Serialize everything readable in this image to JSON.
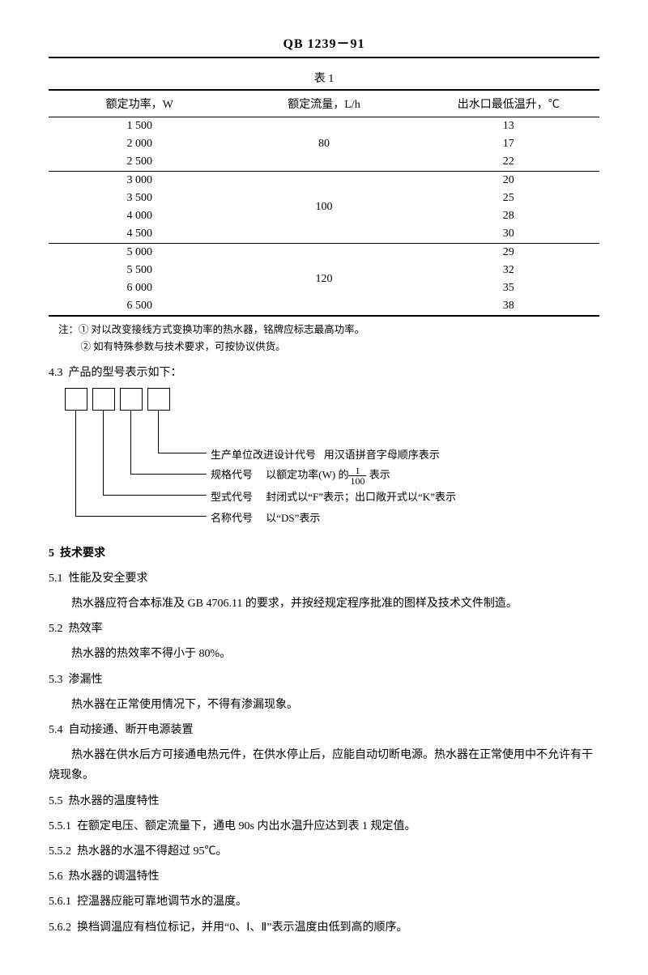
{
  "header": {
    "code": "QB 1239－91"
  },
  "table1": {
    "title": "表 1",
    "columns": [
      "额定功率，W",
      "额定流量，L/h",
      "出水口最低温升，℃"
    ],
    "column_widths": [
      "33%",
      "34%",
      "33%"
    ],
    "groups": [
      {
        "flow": "80",
        "rows": [
          [
            "1 500",
            "13"
          ],
          [
            "2 000",
            "17"
          ],
          [
            "2 500",
            "22"
          ]
        ]
      },
      {
        "flow": "100",
        "rows": [
          [
            "3 000",
            "20"
          ],
          [
            "3 500",
            "25"
          ],
          [
            "4 000",
            "28"
          ],
          [
            "4 500",
            "30"
          ]
        ]
      },
      {
        "flow": "120",
        "rows": [
          [
            "5 000",
            "29"
          ],
          [
            "5 500",
            "32"
          ],
          [
            "6 000",
            "35"
          ],
          [
            "6 500",
            "38"
          ]
        ]
      }
    ],
    "notes": [
      "注：① 对以改变接线方式变换功率的热水器，铭牌应标志最高功率。",
      "② 如有特殊参数与技术要求，可按协议供货。"
    ]
  },
  "section43": {
    "num": "4.3",
    "text": "产品的型号表示如下：",
    "labels": {
      "l1a": "生产单位改进设计代号",
      "l1b": "用汉语拼音字母顺序表示",
      "l2a": "规格代号",
      "l2b_pre": "以额定功率(W) 的",
      "l2b_post": " 表示",
      "l3a": "型式代号",
      "l3b": "封闭式以“F”表示；出口敞开式以“K”表示",
      "l4a": "名称代号",
      "l4b": "以“DS”表示"
    },
    "frac": {
      "num": "1",
      "den": "100"
    }
  },
  "section5": {
    "title_num": "5",
    "title_text": "技术要求",
    "s51n": "5.1",
    "s51t": "性能及安全要求",
    "s51b": "热水器应符合本标准及 GB 4706.11 的要求，并按经规定程序批准的图样及技术文件制造。",
    "s52n": "5.2",
    "s52t": "热效率",
    "s52b": "热水器的热效率不得小于 80%。",
    "s53n": "5.3",
    "s53t": "渗漏性",
    "s53b": "热水器在正常使用情况下，不得有渗漏现象。",
    "s54n": "5.4",
    "s54t": "自动接通、断开电源装置",
    "s54b": "热水器在供水后方可接通电热元件，在供水停止后，应能自动切断电源。热水器在正常使用中不允许有干烧现象。",
    "s55n": "5.5",
    "s55t": "热水器的温度特性",
    "s551n": "5.5.1",
    "s551b": "在额定电压、额定流量下，通电 90s 内出水温升应达到表 1 规定值。",
    "s552n": "5.5.2",
    "s552b": "热水器的水温不得超过 95℃。",
    "s56n": "5.6",
    "s56t": "热水器的调温特性",
    "s561n": "5.6.1",
    "s561b": "控温器应能可靠地调节水的温度。",
    "s562n": "5.6.2",
    "s562b": "换档调温应有档位标记，并用“0、Ⅰ、Ⅱ”表示温度由低到高的顺序。"
  }
}
